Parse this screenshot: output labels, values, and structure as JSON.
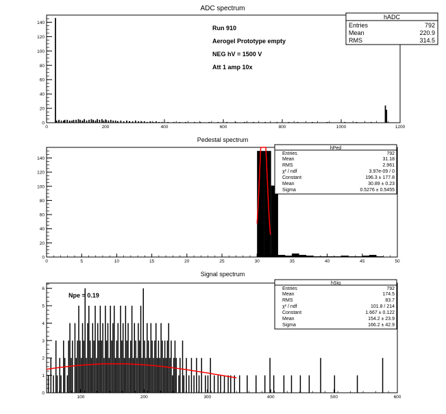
{
  "colors": {
    "hist": "#000000",
    "fit": "#ff0000",
    "frame": "#000000",
    "bg": "#ffffff"
  },
  "chart_data": [
    {
      "id": "adc",
      "type": "bar",
      "title": "ADC spectrum",
      "xlim": [
        0,
        1200
      ],
      "ylim": [
        0,
        150
      ],
      "xticks": [
        "0",
        "200",
        "400",
        "600",
        "800",
        "1000",
        "1200"
      ],
      "yticks": [
        "0",
        "20",
        "40",
        "60",
        "80",
        "100",
        "120",
        "140"
      ],
      "stats": {
        "title": "hADC",
        "rows": [
          {
            "label": "Entries",
            "value": "792"
          },
          {
            "label": "Mean",
            "value": "220.9"
          },
          {
            "label": "RMS",
            "value": "314.5"
          }
        ]
      },
      "annotations": [
        "Run  910",
        "Aerogel Prototype empty",
        "NEG hV = 1500 V",
        "Att 1 amp 10x"
      ],
      "bins": [
        [
          28,
          146
        ],
        [
          32,
          3
        ],
        [
          40,
          4
        ],
        [
          48,
          3
        ],
        [
          56,
          3
        ],
        [
          60,
          4
        ],
        [
          68,
          4
        ],
        [
          76,
          3
        ],
        [
          84,
          3
        ],
        [
          90,
          4
        ],
        [
          98,
          4
        ],
        [
          106,
          5
        ],
        [
          112,
          4
        ],
        [
          120,
          3
        ],
        [
          126,
          5
        ],
        [
          134,
          3
        ],
        [
          142,
          4
        ],
        [
          150,
          5
        ],
        [
          156,
          4
        ],
        [
          164,
          3
        ],
        [
          170,
          5
        ],
        [
          178,
          4
        ],
        [
          186,
          5
        ],
        [
          192,
          3
        ],
        [
          200,
          4
        ],
        [
          208,
          3
        ],
        [
          216,
          4
        ],
        [
          224,
          3
        ],
        [
          232,
          3
        ],
        [
          240,
          2
        ],
        [
          250,
          3
        ],
        [
          260,
          2
        ],
        [
          270,
          3
        ],
        [
          280,
          2
        ],
        [
          290,
          2
        ],
        [
          300,
          3
        ],
        [
          310,
          2
        ],
        [
          320,
          2
        ],
        [
          330,
          2
        ],
        [
          340,
          1
        ],
        [
          350,
          2
        ],
        [
          360,
          1
        ],
        [
          370,
          2
        ],
        [
          380,
          1
        ],
        [
          390,
          1
        ],
        [
          410,
          1
        ],
        [
          430,
          1
        ],
        [
          450,
          1
        ],
        [
          470,
          1
        ],
        [
          500,
          1
        ],
        [
          520,
          1
        ],
        [
          550,
          1
        ],
        [
          580,
          1
        ],
        [
          610,
          1
        ],
        [
          640,
          1
        ],
        [
          670,
          1
        ],
        [
          700,
          1
        ],
        [
          740,
          1
        ],
        [
          780,
          1
        ],
        [
          820,
          1
        ],
        [
          850,
          1
        ],
        [
          900,
          1
        ],
        [
          950,
          1
        ],
        [
          1010,
          1
        ],
        [
          1050,
          1
        ],
        [
          1100,
          1
        ],
        [
          1148,
          24
        ],
        [
          1152,
          18
        ]
      ],
      "bin_width": 4
    },
    {
      "id": "ped",
      "type": "bar",
      "title": "Pedestal spectrum",
      "xlim": [
        0,
        50
      ],
      "ylim": [
        0,
        155
      ],
      "xticks": [
        "0",
        "5",
        "10",
        "15",
        "20",
        "25",
        "30",
        "35",
        "40",
        "45",
        "50"
      ],
      "yticks": [
        "0",
        "20",
        "40",
        "60",
        "80",
        "100",
        "120",
        "140"
      ],
      "stats": {
        "title": "hPed",
        "rows": [
          {
            "label": "Entries",
            "value": "792"
          },
          {
            "label": "Mean",
            "value": "31.18"
          },
          {
            "label": "RMS",
            "value": "2.961"
          },
          {
            "label": "χ² / ndf",
            "value": "3.97e-09 / 0"
          },
          {
            "label": "Constant",
            "value": "196.3 ± 177.8"
          },
          {
            "label": "Mean",
            "value": "30.89 ± 0.23"
          },
          {
            "label": "Sigma",
            "value": "0.5276 ± 0.5455"
          }
        ]
      },
      "bins": [
        [
          30,
          150
        ],
        [
          31,
          150
        ],
        [
          32,
          101
        ],
        [
          33,
          3
        ],
        [
          34,
          2
        ],
        [
          35,
          5
        ],
        [
          36,
          3
        ],
        [
          37,
          2
        ],
        [
          38,
          1
        ],
        [
          39,
          1
        ],
        [
          40,
          1
        ],
        [
          41,
          1
        ],
        [
          42,
          2
        ],
        [
          43,
          1
        ],
        [
          44,
          1
        ],
        [
          45,
          2
        ],
        [
          46,
          3
        ],
        [
          47,
          1
        ]
      ],
      "bin_width": 1,
      "fit": {
        "constant": 196.3,
        "mean": 30.89,
        "sigma": 0.5276,
        "from": 30.0,
        "to": 31.9
      }
    },
    {
      "id": "sig",
      "type": "bar",
      "title": "Signal spectrum",
      "xlim": [
        46,
        600
      ],
      "ylim": [
        0,
        6.3
      ],
      "xticks": [
        "100",
        "200",
        "300",
        "400",
        "500",
        "600"
      ],
      "xtick_values": [
        100,
        200,
        300,
        400,
        500,
        600
      ],
      "yticks": [
        "0",
        "1",
        "2",
        "3",
        "4",
        "5",
        "6"
      ],
      "stats": {
        "title": "hSig",
        "rows": [
          {
            "label": "Entries",
            "value": "792"
          },
          {
            "label": "Mean",
            "value": "174.5"
          },
          {
            "label": "RMS",
            "value": "83.7"
          },
          {
            "label": "χ² / ndf",
            "value": "101.8 / 214"
          },
          {
            "label": "Constant",
            "value": "1.667 ± 0.122"
          },
          {
            "label": "Mean",
            "value": "154.2 ± 23.9"
          },
          {
            "label": "Sigma",
            "value": "166.2 ± 42.9"
          }
        ]
      },
      "annotations": [
        "Npe = 0.19"
      ],
      "bins": [
        [
          48,
          1
        ],
        [
          52,
          2
        ],
        [
          56,
          1
        ],
        [
          60,
          3
        ],
        [
          62,
          1
        ],
        [
          66,
          2
        ],
        [
          68,
          1
        ],
        [
          72,
          3
        ],
        [
          74,
          2
        ],
        [
          78,
          1
        ],
        [
          80,
          3
        ],
        [
          82,
          4
        ],
        [
          84,
          2
        ],
        [
          86,
          3
        ],
        [
          90,
          4
        ],
        [
          92,
          2
        ],
        [
          94,
          3
        ],
        [
          96,
          5
        ],
        [
          98,
          3
        ],
        [
          100,
          2
        ],
        [
          102,
          4
        ],
        [
          104,
          3
        ],
        [
          106,
          6
        ],
        [
          108,
          2
        ],
        [
          110,
          4
        ],
        [
          112,
          5
        ],
        [
          114,
          3
        ],
        [
          116,
          2
        ],
        [
          118,
          4
        ],
        [
          120,
          3
        ],
        [
          122,
          5
        ],
        [
          124,
          2
        ],
        [
          126,
          4
        ],
        [
          128,
          3
        ],
        [
          130,
          5
        ],
        [
          132,
          3
        ],
        [
          134,
          4
        ],
        [
          136,
          2
        ],
        [
          138,
          5
        ],
        [
          140,
          3
        ],
        [
          142,
          4
        ],
        [
          144,
          2
        ],
        [
          146,
          5
        ],
        [
          148,
          3
        ],
        [
          150,
          4
        ],
        [
          152,
          5
        ],
        [
          154,
          2
        ],
        [
          156,
          3
        ],
        [
          158,
          4
        ],
        [
          160,
          2
        ],
        [
          162,
          5
        ],
        [
          164,
          3
        ],
        [
          166,
          4
        ],
        [
          168,
          2
        ],
        [
          170,
          5
        ],
        [
          172,
          3
        ],
        [
          174,
          4
        ],
        [
          176,
          2
        ],
        [
          178,
          3
        ],
        [
          180,
          5
        ],
        [
          182,
          2
        ],
        [
          184,
          4
        ],
        [
          186,
          3
        ],
        [
          188,
          2
        ],
        [
          190,
          4
        ],
        [
          192,
          3
        ],
        [
          194,
          5
        ],
        [
          196,
          2
        ],
        [
          198,
          6
        ],
        [
          200,
          3
        ],
        [
          202,
          2
        ],
        [
          204,
          4
        ],
        [
          206,
          3
        ],
        [
          208,
          2
        ],
        [
          210,
          4
        ],
        [
          212,
          3
        ],
        [
          214,
          2
        ],
        [
          216,
          3
        ],
        [
          218,
          4
        ],
        [
          220,
          2
        ],
        [
          222,
          3
        ],
        [
          224,
          2
        ],
        [
          226,
          4
        ],
        [
          228,
          3
        ],
        [
          230,
          2
        ],
        [
          232,
          3
        ],
        [
          234,
          2
        ],
        [
          236,
          3
        ],
        [
          238,
          4
        ],
        [
          240,
          2
        ],
        [
          242,
          3
        ],
        [
          244,
          1
        ],
        [
          246,
          2
        ],
        [
          248,
          3
        ],
        [
          250,
          2
        ],
        [
          254,
          1
        ],
        [
          256,
          2
        ],
        [
          260,
          3
        ],
        [
          262,
          1
        ],
        [
          266,
          2
        ],
        [
          270,
          1
        ],
        [
          274,
          2
        ],
        [
          278,
          1
        ],
        [
          282,
          2
        ],
        [
          286,
          1
        ],
        [
          290,
          2
        ],
        [
          296,
          1
        ],
        [
          300,
          1
        ],
        [
          304,
          2
        ],
        [
          310,
          1
        ],
        [
          316,
          1
        ],
        [
          320,
          1
        ],
        [
          326,
          1
        ],
        [
          332,
          1
        ],
        [
          336,
          1
        ],
        [
          342,
          1
        ],
        [
          350,
          1
        ],
        [
          362,
          1
        ],
        [
          376,
          1
        ],
        [
          390,
          1
        ],
        [
          398,
          2
        ],
        [
          404,
          1
        ],
        [
          420,
          1
        ],
        [
          432,
          1
        ],
        [
          446,
          1
        ],
        [
          460,
          1
        ],
        [
          478,
          2
        ],
        [
          500,
          1
        ],
        [
          536,
          1
        ],
        [
          576,
          2
        ]
      ],
      "bin_width": 1.6,
      "fit": {
        "constant": 1.667,
        "mean": 154.2,
        "sigma": 166.2,
        "from": 46,
        "to": 346
      }
    }
  ]
}
